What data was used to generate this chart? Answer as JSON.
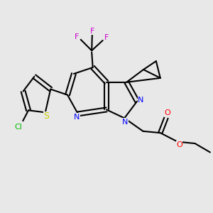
{
  "background_color": "#e8e8e8",
  "figsize": [
    3.0,
    3.0
  ],
  "dpi": 100,
  "atom_colors": {
    "N": "#0000ff",
    "O": "#ff0000",
    "S": "#cccc00",
    "Cl": "#00bb00",
    "F": "#cc00cc",
    "C": "#000000"
  }
}
